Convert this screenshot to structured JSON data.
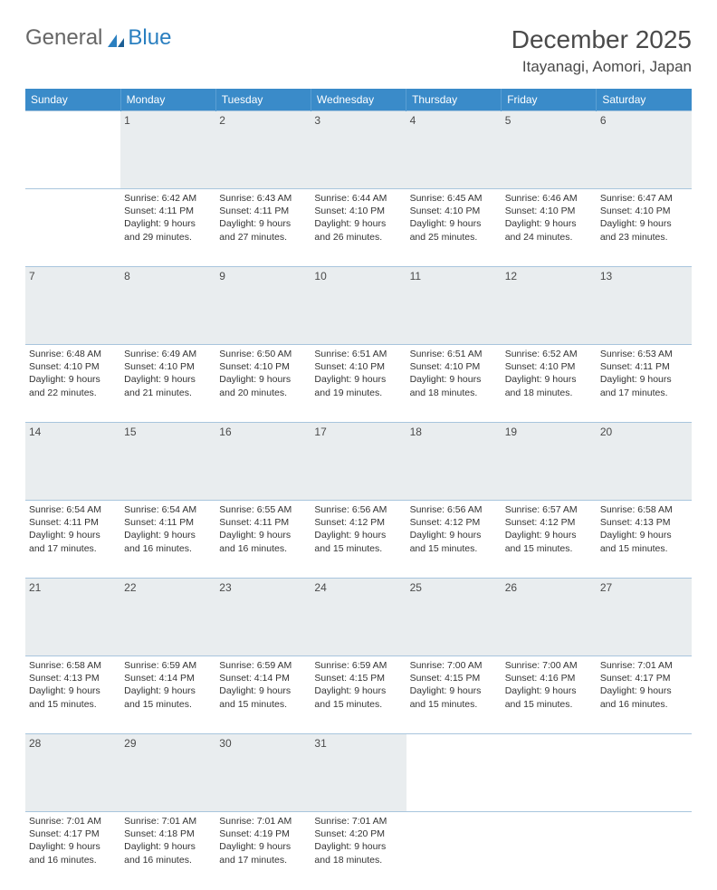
{
  "brand": {
    "general": "General",
    "blue": "Blue"
  },
  "title": "December 2025",
  "location": "Itayanagi, Aomori, Japan",
  "colors": {
    "header_bg": "#3a8bc9",
    "header_text": "#ffffff",
    "daynum_bg": "#e9edef",
    "row_border": "#3a8bc9",
    "cell_border": "#a8c5dd",
    "logo_blue": "#2a7fc0",
    "text": "#333333",
    "title_color": "#4a4a4a"
  },
  "weekdays": [
    "Sunday",
    "Monday",
    "Tuesday",
    "Wednesday",
    "Thursday",
    "Friday",
    "Saturday"
  ],
  "weeks": [
    [
      null,
      {
        "n": "1",
        "sr": "Sunrise: 6:42 AM",
        "ss": "Sunset: 4:11 PM",
        "d1": "Daylight: 9 hours",
        "d2": "and 29 minutes."
      },
      {
        "n": "2",
        "sr": "Sunrise: 6:43 AM",
        "ss": "Sunset: 4:11 PM",
        "d1": "Daylight: 9 hours",
        "d2": "and 27 minutes."
      },
      {
        "n": "3",
        "sr": "Sunrise: 6:44 AM",
        "ss": "Sunset: 4:10 PM",
        "d1": "Daylight: 9 hours",
        "d2": "and 26 minutes."
      },
      {
        "n": "4",
        "sr": "Sunrise: 6:45 AM",
        "ss": "Sunset: 4:10 PM",
        "d1": "Daylight: 9 hours",
        "d2": "and 25 minutes."
      },
      {
        "n": "5",
        "sr": "Sunrise: 6:46 AM",
        "ss": "Sunset: 4:10 PM",
        "d1": "Daylight: 9 hours",
        "d2": "and 24 minutes."
      },
      {
        "n": "6",
        "sr": "Sunrise: 6:47 AM",
        "ss": "Sunset: 4:10 PM",
        "d1": "Daylight: 9 hours",
        "d2": "and 23 minutes."
      }
    ],
    [
      {
        "n": "7",
        "sr": "Sunrise: 6:48 AM",
        "ss": "Sunset: 4:10 PM",
        "d1": "Daylight: 9 hours",
        "d2": "and 22 minutes."
      },
      {
        "n": "8",
        "sr": "Sunrise: 6:49 AM",
        "ss": "Sunset: 4:10 PM",
        "d1": "Daylight: 9 hours",
        "d2": "and 21 minutes."
      },
      {
        "n": "9",
        "sr": "Sunrise: 6:50 AM",
        "ss": "Sunset: 4:10 PM",
        "d1": "Daylight: 9 hours",
        "d2": "and 20 minutes."
      },
      {
        "n": "10",
        "sr": "Sunrise: 6:51 AM",
        "ss": "Sunset: 4:10 PM",
        "d1": "Daylight: 9 hours",
        "d2": "and 19 minutes."
      },
      {
        "n": "11",
        "sr": "Sunrise: 6:51 AM",
        "ss": "Sunset: 4:10 PM",
        "d1": "Daylight: 9 hours",
        "d2": "and 18 minutes."
      },
      {
        "n": "12",
        "sr": "Sunrise: 6:52 AM",
        "ss": "Sunset: 4:10 PM",
        "d1": "Daylight: 9 hours",
        "d2": "and 18 minutes."
      },
      {
        "n": "13",
        "sr": "Sunrise: 6:53 AM",
        "ss": "Sunset: 4:11 PM",
        "d1": "Daylight: 9 hours",
        "d2": "and 17 minutes."
      }
    ],
    [
      {
        "n": "14",
        "sr": "Sunrise: 6:54 AM",
        "ss": "Sunset: 4:11 PM",
        "d1": "Daylight: 9 hours",
        "d2": "and 17 minutes."
      },
      {
        "n": "15",
        "sr": "Sunrise: 6:54 AM",
        "ss": "Sunset: 4:11 PM",
        "d1": "Daylight: 9 hours",
        "d2": "and 16 minutes."
      },
      {
        "n": "16",
        "sr": "Sunrise: 6:55 AM",
        "ss": "Sunset: 4:11 PM",
        "d1": "Daylight: 9 hours",
        "d2": "and 16 minutes."
      },
      {
        "n": "17",
        "sr": "Sunrise: 6:56 AM",
        "ss": "Sunset: 4:12 PM",
        "d1": "Daylight: 9 hours",
        "d2": "and 15 minutes."
      },
      {
        "n": "18",
        "sr": "Sunrise: 6:56 AM",
        "ss": "Sunset: 4:12 PM",
        "d1": "Daylight: 9 hours",
        "d2": "and 15 minutes."
      },
      {
        "n": "19",
        "sr": "Sunrise: 6:57 AM",
        "ss": "Sunset: 4:12 PM",
        "d1": "Daylight: 9 hours",
        "d2": "and 15 minutes."
      },
      {
        "n": "20",
        "sr": "Sunrise: 6:58 AM",
        "ss": "Sunset: 4:13 PM",
        "d1": "Daylight: 9 hours",
        "d2": "and 15 minutes."
      }
    ],
    [
      {
        "n": "21",
        "sr": "Sunrise: 6:58 AM",
        "ss": "Sunset: 4:13 PM",
        "d1": "Daylight: 9 hours",
        "d2": "and 15 minutes."
      },
      {
        "n": "22",
        "sr": "Sunrise: 6:59 AM",
        "ss": "Sunset: 4:14 PM",
        "d1": "Daylight: 9 hours",
        "d2": "and 15 minutes."
      },
      {
        "n": "23",
        "sr": "Sunrise: 6:59 AM",
        "ss": "Sunset: 4:14 PM",
        "d1": "Daylight: 9 hours",
        "d2": "and 15 minutes."
      },
      {
        "n": "24",
        "sr": "Sunrise: 6:59 AM",
        "ss": "Sunset: 4:15 PM",
        "d1": "Daylight: 9 hours",
        "d2": "and 15 minutes."
      },
      {
        "n": "25",
        "sr": "Sunrise: 7:00 AM",
        "ss": "Sunset: 4:15 PM",
        "d1": "Daylight: 9 hours",
        "d2": "and 15 minutes."
      },
      {
        "n": "26",
        "sr": "Sunrise: 7:00 AM",
        "ss": "Sunset: 4:16 PM",
        "d1": "Daylight: 9 hours",
        "d2": "and 15 minutes."
      },
      {
        "n": "27",
        "sr": "Sunrise: 7:01 AM",
        "ss": "Sunset: 4:17 PM",
        "d1": "Daylight: 9 hours",
        "d2": "and 16 minutes."
      }
    ],
    [
      {
        "n": "28",
        "sr": "Sunrise: 7:01 AM",
        "ss": "Sunset: 4:17 PM",
        "d1": "Daylight: 9 hours",
        "d2": "and 16 minutes."
      },
      {
        "n": "29",
        "sr": "Sunrise: 7:01 AM",
        "ss": "Sunset: 4:18 PM",
        "d1": "Daylight: 9 hours",
        "d2": "and 16 minutes."
      },
      {
        "n": "30",
        "sr": "Sunrise: 7:01 AM",
        "ss": "Sunset: 4:19 PM",
        "d1": "Daylight: 9 hours",
        "d2": "and 17 minutes."
      },
      {
        "n": "31",
        "sr": "Sunrise: 7:01 AM",
        "ss": "Sunset: 4:20 PM",
        "d1": "Daylight: 9 hours",
        "d2": "and 18 minutes."
      },
      null,
      null,
      null
    ]
  ]
}
